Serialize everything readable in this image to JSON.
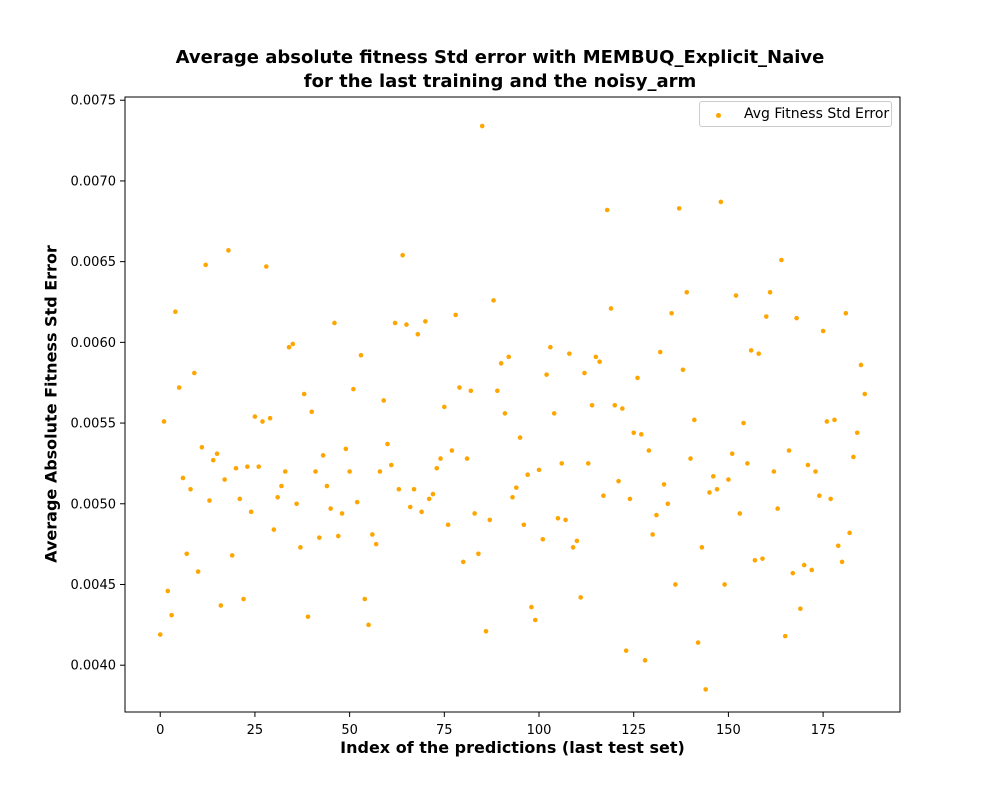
{
  "chart_data": {
    "type": "scatter",
    "title": "Average absolute fitness Std error with MEMBUQ_Explicit_Naive",
    "subtitle": "for the last training and the noisy_arm",
    "xlabel": "Index of the predictions (last test set)",
    "ylabel": "Average Absolute Fitness Std Error",
    "xlim": [
      -9.3,
      195.3
    ],
    "ylim": [
      0.00371,
      0.00752
    ],
    "xticks": [
      0,
      25,
      50,
      75,
      100,
      125,
      150,
      175
    ],
    "yticks": [
      0.004,
      0.0045,
      0.005,
      0.0055,
      0.006,
      0.0065,
      0.007,
      0.0075
    ],
    "ytick_labels": [
      "0.0040",
      "0.0045",
      "0.0050",
      "0.0055",
      "0.0060",
      "0.0065",
      "0.0070",
      "0.0075"
    ],
    "grid": false,
    "legend_position": "top-right",
    "colors": {
      "points": "#ffa500"
    },
    "series": [
      {
        "name": "Avg Fitness Std Error",
        "x": [
          0,
          1,
          2,
          3,
          4,
          5,
          6,
          7,
          8,
          9,
          10,
          11,
          12,
          13,
          14,
          15,
          16,
          17,
          18,
          19,
          20,
          21,
          22,
          23,
          24,
          25,
          26,
          27,
          28,
          29,
          30,
          31,
          32,
          33,
          34,
          35,
          36,
          37,
          38,
          39,
          40,
          41,
          42,
          43,
          44,
          45,
          46,
          47,
          48,
          49,
          50,
          51,
          52,
          53,
          54,
          55,
          56,
          57,
          58,
          59,
          60,
          61,
          62,
          63,
          64,
          65,
          66,
          67,
          68,
          69,
          70,
          71,
          72,
          73,
          74,
          75,
          76,
          77,
          78,
          79,
          80,
          81,
          82,
          83,
          84,
          85,
          86,
          87,
          88,
          89,
          90,
          91,
          92,
          93,
          94,
          95,
          96,
          97,
          98,
          99,
          100,
          101,
          102,
          103,
          104,
          105,
          106,
          107,
          108,
          109,
          110,
          111,
          112,
          113,
          114,
          115,
          116,
          117,
          118,
          119,
          120,
          121,
          122,
          123,
          124,
          125,
          126,
          127,
          128,
          129,
          130,
          131,
          132,
          133,
          134,
          135,
          136,
          137,
          138,
          139,
          140,
          141,
          142,
          143,
          144,
          145,
          146,
          147,
          148,
          149,
          150,
          151,
          152,
          153,
          154,
          155,
          156,
          157,
          158,
          159,
          160,
          161,
          162,
          163,
          164,
          165,
          166,
          167,
          168,
          169,
          170,
          171,
          172,
          173,
          174,
          175,
          176,
          177,
          178,
          179,
          180,
          181,
          182,
          183,
          184,
          185,
          186
        ],
        "values": [
          0.00419,
          0.00551,
          0.00446,
          0.00431,
          0.00619,
          0.00572,
          0.00516,
          0.00469,
          0.00509,
          0.00581,
          0.00458,
          0.00535,
          0.00648,
          0.00502,
          0.00527,
          0.00531,
          0.00437,
          0.00515,
          0.00657,
          0.00468,
          0.00522,
          0.00503,
          0.00441,
          0.00523,
          0.00495,
          0.00554,
          0.00523,
          0.00551,
          0.00647,
          0.00553,
          0.00484,
          0.00504,
          0.00511,
          0.0052,
          0.00597,
          0.00599,
          0.005,
          0.00473,
          0.00568,
          0.0043,
          0.00557,
          0.0052,
          0.00479,
          0.0053,
          0.00511,
          0.00497,
          0.00612,
          0.0048,
          0.00494,
          0.00534,
          0.0052,
          0.00571,
          0.00501,
          0.00592,
          0.00441,
          0.00425,
          0.00481,
          0.00475,
          0.0052,
          0.00564,
          0.00537,
          0.00524,
          0.00612,
          0.00509,
          0.00654,
          0.00611,
          0.00498,
          0.00509,
          0.00605,
          0.00495,
          0.00613,
          0.00503,
          0.00506,
          0.00522,
          0.00528,
          0.0056,
          0.00487,
          0.00533,
          0.00617,
          0.00572,
          0.00464,
          0.00528,
          0.0057,
          0.00494,
          0.00469,
          0.00734,
          0.00421,
          0.0049,
          0.00626,
          0.0057,
          0.00587,
          0.00556,
          0.00591,
          0.00504,
          0.0051,
          0.00541,
          0.00487,
          0.00518,
          0.00436,
          0.00428,
          0.00521,
          0.00478,
          0.0058,
          0.00597,
          0.00556,
          0.00491,
          0.00525,
          0.0049,
          0.00593,
          0.00473,
          0.00477,
          0.00442,
          0.00581,
          0.00525,
          0.00561,
          0.00591,
          0.00588,
          0.00505,
          0.00682,
          0.00621,
          0.00561,
          0.00514,
          0.00559,
          0.00409,
          0.00503,
          0.00544,
          0.00578,
          0.00543,
          0.00403,
          0.00533,
          0.00481,
          0.00493,
          0.00594,
          0.00512,
          0.005,
          0.00618,
          0.0045,
          0.00683,
          0.00583,
          0.00631,
          0.00528,
          0.00552,
          0.00414,
          0.00473,
          0.00385,
          0.00507,
          0.00517,
          0.00509,
          0.00687,
          0.0045,
          0.00515,
          0.00531,
          0.00629,
          0.00494,
          0.0055,
          0.00525,
          0.00595,
          0.00465,
          0.00593,
          0.00466,
          0.00616,
          0.00631,
          0.0052,
          0.00497,
          0.00651,
          0.00418,
          0.00533,
          0.00457,
          0.00615,
          0.00435,
          0.00462,
          0.00524,
          0.00459,
          0.0052,
          0.00505,
          0.00607,
          0.00551,
          0.00503,
          0.00552,
          0.00474,
          0.00464,
          0.00618,
          0.00482,
          0.00529,
          0.00544,
          0.00586,
          0.00568
        ]
      }
    ]
  }
}
